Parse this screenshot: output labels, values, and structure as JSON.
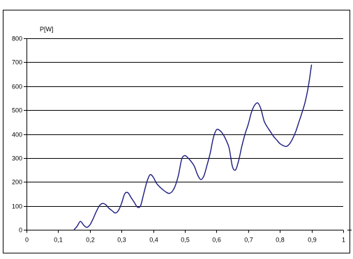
{
  "chart_data": {
    "type": "line",
    "title": "",
    "xlabel": "",
    "ylabel": "P[W]",
    "xlim": [
      0,
      1
    ],
    "ylim": [
      0,
      800
    ],
    "x_ticks": [
      0,
      0.1,
      0.2,
      0.3,
      0.4,
      0.5,
      0.6,
      0.7,
      0.8,
      0.9,
      1
    ],
    "x_tick_labels": [
      "0",
      "0,1",
      "0,2",
      "0,3",
      "0,4",
      "0,5",
      "0,6",
      "0,7",
      "0,8",
      "0,9",
      "1"
    ],
    "y_ticks": [
      0,
      100,
      200,
      300,
      400,
      500,
      600,
      700,
      800
    ],
    "y_tick_labels": [
      "0",
      "100",
      "200",
      "300",
      "400",
      "500",
      "600",
      "700",
      "800"
    ],
    "grid": "horizontal",
    "legend": "none",
    "series": [
      {
        "color": "#1a1a80",
        "points": [
          [
            0.15,
            0
          ],
          [
            0.16,
            15
          ],
          [
            0.17,
            35
          ],
          [
            0.18,
            20
          ],
          [
            0.19,
            10
          ],
          [
            0.2,
            20
          ],
          [
            0.21,
            45
          ],
          [
            0.22,
            75
          ],
          [
            0.23,
            100
          ],
          [
            0.24,
            110
          ],
          [
            0.25,
            105
          ],
          [
            0.26,
            90
          ],
          [
            0.27,
            80
          ],
          [
            0.28,
            70
          ],
          [
            0.29,
            80
          ],
          [
            0.3,
            110
          ],
          [
            0.31,
            150
          ],
          [
            0.32,
            155
          ],
          [
            0.33,
            135
          ],
          [
            0.34,
            115
          ],
          [
            0.35,
            95
          ],
          [
            0.36,
            100
          ],
          [
            0.37,
            150
          ],
          [
            0.38,
            200
          ],
          [
            0.39,
            230
          ],
          [
            0.4,
            220
          ],
          [
            0.41,
            195
          ],
          [
            0.42,
            180
          ],
          [
            0.43,
            168
          ],
          [
            0.44,
            158
          ],
          [
            0.45,
            152
          ],
          [
            0.46,
            160
          ],
          [
            0.47,
            185
          ],
          [
            0.48,
            230
          ],
          [
            0.49,
            295
          ],
          [
            0.5,
            310
          ],
          [
            0.51,
            300
          ],
          [
            0.52,
            285
          ],
          [
            0.53,
            265
          ],
          [
            0.54,
            230
          ],
          [
            0.55,
            210
          ],
          [
            0.56,
            225
          ],
          [
            0.57,
            270
          ],
          [
            0.58,
            320
          ],
          [
            0.59,
            385
          ],
          [
            0.6,
            418
          ],
          [
            0.61,
            415
          ],
          [
            0.62,
            400
          ],
          [
            0.63,
            375
          ],
          [
            0.64,
            340
          ],
          [
            0.65,
            265
          ],
          [
            0.66,
            250
          ],
          [
            0.67,
            290
          ],
          [
            0.68,
            350
          ],
          [
            0.69,
            400
          ],
          [
            0.7,
            440
          ],
          [
            0.71,
            490
          ],
          [
            0.72,
            520
          ],
          [
            0.73,
            530
          ],
          [
            0.74,
            505
          ],
          [
            0.75,
            455
          ],
          [
            0.76,
            430
          ],
          [
            0.77,
            410
          ],
          [
            0.78,
            390
          ],
          [
            0.79,
            375
          ],
          [
            0.8,
            360
          ],
          [
            0.81,
            352
          ],
          [
            0.82,
            348
          ],
          [
            0.83,
            358
          ],
          [
            0.84,
            380
          ],
          [
            0.85,
            410
          ],
          [
            0.86,
            450
          ],
          [
            0.87,
            490
          ],
          [
            0.88,
            535
          ],
          [
            0.89,
            600
          ],
          [
            0.9,
            690
          ]
        ]
      }
    ]
  }
}
